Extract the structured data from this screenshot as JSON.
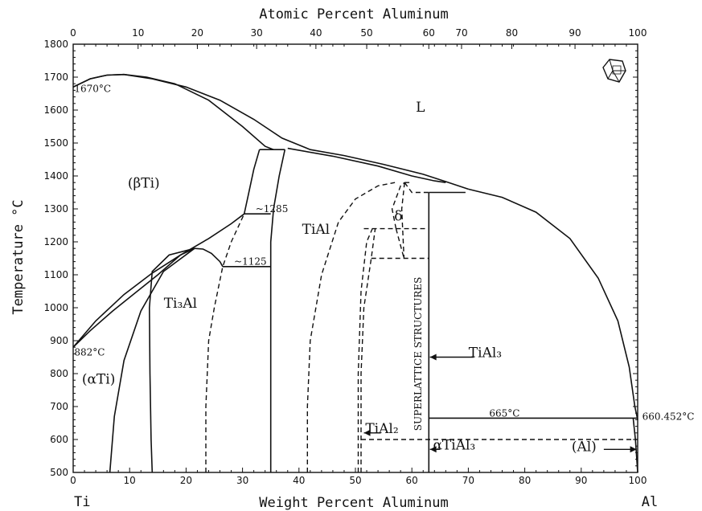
{
  "chart_data": {
    "type": "diagram",
    "title": "",
    "top_axis_label": "Atomic Percent Aluminum",
    "xlabel": "Weight Percent Aluminum",
    "ylabel": "Temperature °C",
    "xlim": [
      0,
      100
    ],
    "ylim": [
      500,
      1800
    ],
    "x_ticks": [
      0,
      10,
      20,
      30,
      40,
      50,
      60,
      70,
      80,
      90,
      100
    ],
    "y_ticks": [
      500,
      600,
      700,
      800,
      900,
      1000,
      1100,
      1200,
      1300,
      1400,
      1500,
      1600,
      1700,
      1800
    ],
    "top_ticks": [
      {
        "label": "0",
        "x_wt": 0
      },
      {
        "label": "10",
        "x_wt": 11.5
      },
      {
        "label": "20",
        "x_wt": 22.0
      },
      {
        "label": "30",
        "x_wt": 32.5
      },
      {
        "label": "40",
        "x_wt": 43.0
      },
      {
        "label": "50",
        "x_wt": 52.0
      },
      {
        "label": "60",
        "x_wt": 63.0
      },
      {
        "label": "70",
        "x_wt": 68.8
      },
      {
        "label": "80",
        "x_wt": 77.7
      },
      {
        "label": "90",
        "x_wt": 88.9
      },
      {
        "label": "100",
        "x_wt": 100
      }
    ],
    "end_labels": {
      "left": "Ti",
      "right": "Al"
    },
    "region_labels": [
      {
        "text": "L",
        "x": 61.5,
        "y": 1595
      },
      {
        "text": "(βTi)",
        "x": 12.5,
        "y": 1365
      },
      {
        "text": "TiAl",
        "x": 43,
        "y": 1225
      },
      {
        "text": "Ti₃Al",
        "x": 19,
        "y": 1000
      },
      {
        "text": "(αTi)",
        "x": 4.5,
        "y": 770
      },
      {
        "text": "δ",
        "x": 57.6,
        "y": 1265
      },
      {
        "text": "TiAl₃",
        "x": 73,
        "y": 850
      },
      {
        "text": "(Al)",
        "x": 90.5,
        "y": 565
      },
      {
        "text": "αTiAl₃",
        "x": 67.5,
        "y": 570
      },
      {
        "text": "TiAl₂",
        "x": 54.7,
        "y": 620
      }
    ],
    "annotations": [
      {
        "text": "1670°C",
        "x": 0.2,
        "y": 1655
      },
      {
        "text": "882°C",
        "x": 0.2,
        "y": 855
      },
      {
        "text": "~1285",
        "x": 32.3,
        "y": 1290
      },
      {
        "text": "~1125",
        "x": 28.5,
        "y": 1130
      },
      {
        "text": "665°C",
        "x": 73.7,
        "y": 670
      },
      {
        "text": "660.452°C",
        "x": 100.8,
        "y": 660
      },
      {
        "text": "SUPERLATTICE STRUCTURES",
        "x": 61.7,
        "y": 860
      }
    ],
    "solid_lines": [
      {
        "name": "liquidus-left",
        "points": [
          [
            0,
            1670
          ],
          [
            3,
            1695
          ],
          [
            6,
            1706
          ],
          [
            9,
            1708
          ],
          [
            14,
            1695
          ],
          [
            20,
            1670
          ],
          [
            26,
            1630
          ],
          [
            32,
            1572
          ],
          [
            37,
            1515
          ],
          [
            42,
            1480
          ],
          [
            48,
            1462
          ],
          [
            55,
            1435
          ],
          [
            62,
            1405
          ],
          [
            66,
            1383
          ],
          [
            70,
            1360
          ]
        ]
      },
      {
        "name": "solidus-left",
        "points": [
          [
            0,
            1670
          ],
          [
            3,
            1695
          ],
          [
            6,
            1706
          ],
          [
            9,
            1708
          ],
          [
            13,
            1700
          ],
          [
            18,
            1680
          ],
          [
            24,
            1630
          ],
          [
            30,
            1550
          ],
          [
            34,
            1490
          ],
          [
            35.5,
            1480
          ]
        ]
      },
      {
        "name": "liquidus-right",
        "points": [
          [
            70,
            1360
          ],
          [
            76,
            1335
          ],
          [
            82,
            1290
          ],
          [
            88,
            1210
          ],
          [
            93,
            1090
          ],
          [
            96.5,
            960
          ],
          [
            98.5,
            820
          ],
          [
            99.5,
            700
          ],
          [
            100,
            660
          ]
        ]
      },
      {
        "name": "solidus-tial",
        "points": [
          [
            38,
            1484
          ],
          [
            46,
            1460
          ],
          [
            54,
            1430
          ],
          [
            60,
            1400
          ],
          [
            64,
            1385
          ],
          [
            66,
            1380
          ]
        ]
      },
      {
        "name": "peritectic-1480",
        "points": [
          [
            33,
            1480
          ],
          [
            37.5,
            1480
          ]
        ]
      },
      {
        "name": "beta-alpha2-left",
        "points": [
          [
            33,
            1480
          ],
          [
            32,
            1420
          ],
          [
            31,
            1340
          ],
          [
            30.3,
            1285
          ]
        ]
      },
      {
        "name": "beta-alpha2-right",
        "points": [
          [
            37.5,
            1480
          ],
          [
            36.5,
            1400
          ],
          [
            35.5,
            1300
          ],
          [
            35,
            1200
          ],
          [
            35,
            1000
          ],
          [
            35,
            800
          ],
          [
            35,
            500
          ]
        ]
      },
      {
        "name": "eutectoid-1285",
        "points": [
          [
            30.3,
            1285
          ],
          [
            35,
            1285
          ]
        ]
      },
      {
        "name": "eutectoid-1125",
        "points": [
          [
            26.5,
            1125
          ],
          [
            35,
            1125
          ]
        ]
      },
      {
        "name": "beta-transus-upper",
        "points": [
          [
            0,
            880
          ],
          [
            4,
            960
          ],
          [
            9,
            1040
          ],
          [
            14,
            1105
          ],
          [
            19,
            1160
          ],
          [
            24,
            1210
          ],
          [
            28,
            1255
          ],
          [
            30.3,
            1285
          ]
        ]
      },
      {
        "name": "beta-transus-lower",
        "points": [
          [
            0,
            880
          ],
          [
            3,
            930
          ],
          [
            7,
            990
          ],
          [
            11,
            1045
          ],
          [
            15,
            1100
          ],
          [
            19,
            1160
          ],
          [
            21.5,
            1180
          ]
        ]
      },
      {
        "name": "alpha2-dome-left",
        "points": [
          [
            21.5,
            1180
          ],
          [
            17,
            1160
          ],
          [
            14,
            1110
          ],
          [
            13.5,
            1000
          ],
          [
            13.6,
            800
          ],
          [
            13.8,
            600
          ],
          [
            14,
            500
          ]
        ]
      },
      {
        "name": "alpha-dome-left",
        "points": [
          [
            21.5,
            1180
          ],
          [
            16,
            1110
          ],
          [
            12,
            990
          ],
          [
            9,
            840
          ],
          [
            7.3,
            670
          ],
          [
            6.5,
            500
          ]
        ]
      },
      {
        "name": "alpha2-hump",
        "points": [
          [
            21.5,
            1180
          ],
          [
            23,
            1178
          ],
          [
            24.5,
            1165
          ],
          [
            26,
            1140
          ],
          [
            26.5,
            1125
          ]
        ]
      },
      {
        "name": "tial3-vertical",
        "points": [
          [
            63,
            1350
          ],
          [
            63,
            500
          ]
        ]
      },
      {
        "name": "tial3-peritectic",
        "points": [
          [
            63,
            1350
          ],
          [
            69.5,
            1350
          ]
        ]
      },
      {
        "name": "eutectic-665",
        "points": [
          [
            63,
            665
          ],
          [
            100,
            665
          ]
        ]
      },
      {
        "name": "al-solvus",
        "points": [
          [
            99.2,
            665
          ],
          [
            99.6,
            600
          ],
          [
            100,
            500
          ]
        ]
      }
    ],
    "dashed_lines": [
      {
        "name": "ti3al-left-bound",
        "points": [
          [
            23.5,
            500
          ],
          [
            23.5,
            700
          ],
          [
            24,
            900
          ],
          [
            25,
            1000
          ],
          [
            26.5,
            1125
          ],
          [
            28,
            1200
          ],
          [
            30.3,
            1285
          ]
        ]
      },
      {
        "name": "tial-right-bound",
        "points": [
          [
            41.5,
            500
          ],
          [
            41.5,
            700
          ],
          [
            42,
            900
          ],
          [
            44,
            1100
          ],
          [
            47,
            1260
          ],
          [
            50,
            1330
          ],
          [
            54,
            1370
          ],
          [
            57,
            1380
          ]
        ]
      },
      {
        "name": "tial2-left",
        "points": [
          [
            50.5,
            500
          ],
          [
            50.5,
            800
          ],
          [
            51,
            1050
          ],
          [
            52,
            1200
          ],
          [
            53,
            1240
          ]
        ]
      },
      {
        "name": "tial2-right",
        "points": [
          [
            51,
            500
          ],
          [
            51,
            800
          ],
          [
            51.5,
            1000
          ],
          [
            52.8,
            1150
          ],
          [
            53.5,
            1240
          ]
        ]
      },
      {
        "name": "tial2-top",
        "points": [
          [
            51.5,
            1240
          ],
          [
            57.2,
            1240
          ]
        ]
      },
      {
        "name": "delta-left",
        "points": [
          [
            57.2,
            1240
          ],
          [
            56.5,
            1300
          ],
          [
            58,
            1370
          ],
          [
            58.7,
            1380
          ]
        ]
      },
      {
        "name": "delta-right",
        "points": [
          [
            58.7,
            1380
          ],
          [
            58.2,
            1300
          ],
          [
            58.6,
            1150
          ]
        ]
      },
      {
        "name": "delta-base",
        "points": [
          [
            57.2,
            1240
          ],
          [
            58.6,
            1150
          ]
        ]
      },
      {
        "name": "peritectoid-1150",
        "points": [
          [
            52.8,
            1150
          ],
          [
            63,
            1150
          ]
        ]
      },
      {
        "name": "tial2-ext",
        "points": [
          [
            57.2,
            1240
          ],
          [
            63,
            1240
          ]
        ]
      },
      {
        "name": "line-1350",
        "points": [
          [
            58.7,
            1380
          ],
          [
            60,
            1350
          ],
          [
            63,
            1350
          ]
        ]
      },
      {
        "name": "line-600",
        "points": [
          [
            51,
            600
          ],
          [
            100,
            600
          ]
        ]
      },
      {
        "name": "tial3-upper-bound",
        "points": [
          [
            58.7,
            1380
          ],
          [
            60,
            1380
          ]
        ]
      }
    ],
    "arrows": [
      {
        "name": "arrow-tial3",
        "from": [
          71,
          850
        ],
        "to": [
          63.2,
          850
        ]
      },
      {
        "name": "arrow-tial2",
        "from": [
          54.5,
          620
        ],
        "to": [
          51.5,
          620
        ]
      },
      {
        "name": "arrow-atial3",
        "from": [
          65,
          570
        ],
        "to": [
          63.2,
          570
        ]
      },
      {
        "name": "arrow-al",
        "from": [
          94,
          570
        ],
        "to": [
          99.8,
          570
        ]
      }
    ]
  }
}
